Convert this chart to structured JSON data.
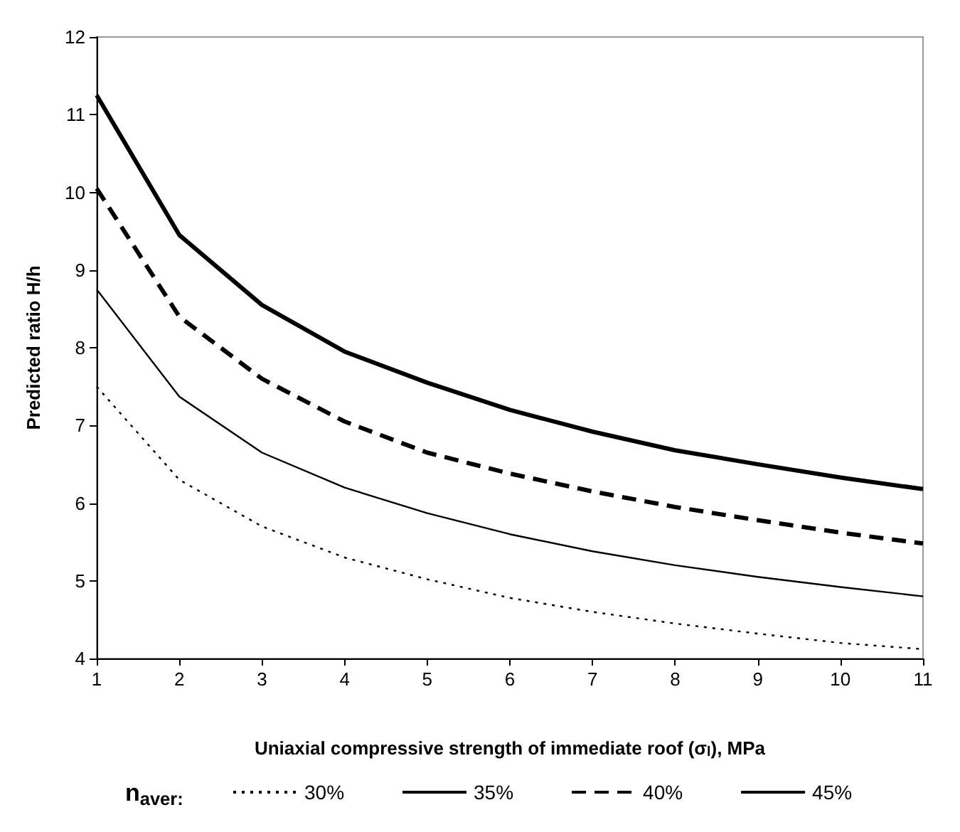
{
  "chart_data": {
    "type": "line",
    "xlabel": "Uniaxial compressive strength of immediate roof (σ$_{l}$), MPa",
    "ylabel": "Predicted ratio H/h",
    "legend_title": "n$_{aver:}$",
    "x": [
      1,
      2,
      3,
      4,
      5,
      6,
      7,
      8,
      9,
      10,
      11
    ],
    "xlim": [
      1,
      11
    ],
    "xticks": [
      1,
      2,
      3,
      4,
      5,
      6,
      7,
      8,
      9,
      10,
      11
    ],
    "ylim": [
      4,
      12
    ],
    "yticks": [
      4,
      5,
      6,
      7,
      8,
      9,
      10,
      11,
      12
    ],
    "grid": false,
    "legend": "bottom",
    "marker": "none",
    "series": [
      {
        "name": "30%",
        "color": "#000000",
        "line_style": "dotted",
        "values": [
          7.5,
          6.3,
          5.7,
          5.3,
          5.02,
          4.78,
          4.6,
          4.45,
          4.32,
          4.2,
          4.12
        ]
      },
      {
        "name": "35%",
        "color": "#000000",
        "line_style": "solid",
        "values": [
          8.75,
          7.37,
          6.65,
          6.2,
          5.87,
          5.6,
          5.38,
          5.2,
          5.05,
          4.92,
          4.8
        ]
      },
      {
        "name": "40%",
        "color": "#000000",
        "line_style": "dashed",
        "values": [
          10.05,
          8.4,
          7.6,
          7.05,
          6.65,
          6.38,
          6.15,
          5.95,
          5.78,
          5.62,
          5.48
        ]
      },
      {
        "name": "45%",
        "color": "#000000",
        "line_style": "solid",
        "values": [
          11.25,
          9.45,
          8.55,
          7.95,
          7.55,
          7.2,
          6.92,
          6.68,
          6.5,
          6.33,
          6.18
        ]
      }
    ]
  }
}
